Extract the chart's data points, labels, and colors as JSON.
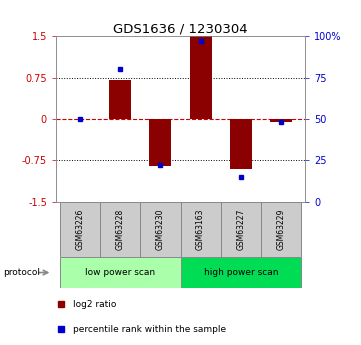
{
  "title": "GDS1636 / 1230304",
  "samples": [
    "GSM63226",
    "GSM63228",
    "GSM63230",
    "GSM63163",
    "GSM63227",
    "GSM63229"
  ],
  "log2_ratio": [
    0.0,
    0.7,
    -0.85,
    1.5,
    -0.9,
    -0.05
  ],
  "percentile_rank": [
    50,
    80,
    22,
    97,
    15,
    48
  ],
  "bar_color": "#8B0000",
  "dot_color": "#0000CD",
  "ylim_left": [
    -1.5,
    1.5
  ],
  "ylim_right": [
    0,
    100
  ],
  "yticks_left": [
    -1.5,
    -0.75,
    0,
    0.75,
    1.5
  ],
  "yticks_right": [
    0,
    25,
    50,
    75,
    100
  ],
  "ytick_labels_right": [
    "0",
    "25",
    "50",
    "75",
    "100%"
  ],
  "ytick_labels_left": [
    "-1.5",
    "-0.75",
    "0",
    "0.75",
    "1.5"
  ],
  "hlines": [
    0.75,
    -0.75
  ],
  "zero_line_color": "#CC0000",
  "hline_color": "black",
  "protocol_groups": [
    {
      "label": "low power scan",
      "indices": [
        0,
        1,
        2
      ],
      "color": "#aaffaa"
    },
    {
      "label": "high power scan",
      "indices": [
        3,
        4,
        5
      ],
      "color": "#00dd55"
    }
  ],
  "legend_entries": [
    {
      "label": "log2 ratio",
      "color": "#8B0000"
    },
    {
      "label": "percentile rank within the sample",
      "color": "#0000CD"
    }
  ],
  "protocol_label": "protocol",
  "bar_width": 0.55,
  "background_color": "#ffffff",
  "sample_box_color": "#cccccc",
  "sample_box_edge": "#888888"
}
